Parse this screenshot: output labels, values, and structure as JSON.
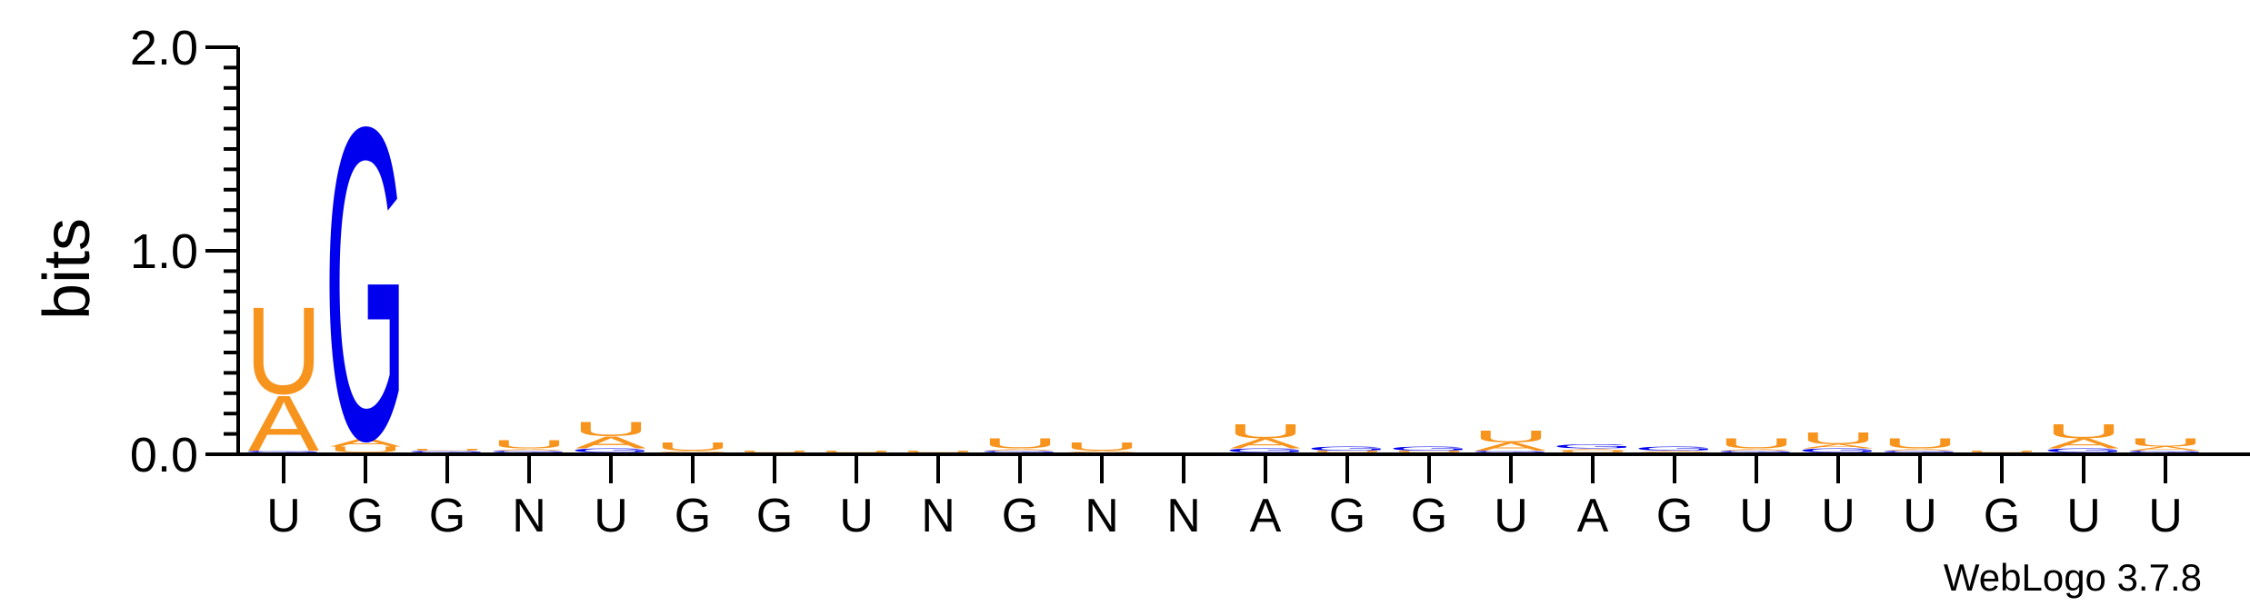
{
  "chart_data": {
    "type": "sequence-logo",
    "ylabel": "bits",
    "ylim": [
      0,
      2.0
    ],
    "yticks": [
      "0.0",
      "1.0",
      "2.0"
    ],
    "minor_ytick_step": 0.1,
    "alphabet_colors": {
      "A": "#f7941d",
      "U": "#f7941d",
      "G": "#0000ee",
      "C": "#0000ee"
    },
    "positions": [
      {
        "label": "U",
        "stack": [
          {
            "letter": "G",
            "bits": 0.01
          },
          {
            "letter": "A",
            "bits": 0.28
          },
          {
            "letter": "U",
            "bits": 0.44
          }
        ]
      },
      {
        "label": "G",
        "stack": [
          {
            "letter": "U",
            "bits": 0.03
          },
          {
            "letter": "A",
            "bits": 0.04
          },
          {
            "letter": "G",
            "bits": 1.58
          }
        ]
      },
      {
        "label": "G",
        "stack": [
          {
            "letter": "G",
            "bits": 0.01
          },
          {
            "letter": "U",
            "bits": 0.01
          }
        ]
      },
      {
        "label": "N",
        "stack": [
          {
            "letter": "G",
            "bits": 0.01
          },
          {
            "letter": "A",
            "bits": 0.01
          },
          {
            "letter": "U",
            "bits": 0.04
          }
        ]
      },
      {
        "label": "U",
        "stack": [
          {
            "letter": "G",
            "bits": 0.02
          },
          {
            "letter": "A",
            "bits": 0.06
          },
          {
            "letter": "U",
            "bits": 0.07
          }
        ]
      },
      {
        "label": "G",
        "stack": [
          {
            "letter": "A",
            "bits": 0.01
          },
          {
            "letter": "U",
            "bits": 0.04
          }
        ]
      },
      {
        "label": "G",
        "stack": [
          {
            "letter": "U",
            "bits": 0.01
          }
        ]
      },
      {
        "label": "U",
        "stack": [
          {
            "letter": "U",
            "bits": 0.01
          }
        ]
      },
      {
        "label": "N",
        "stack": [
          {
            "letter": "U",
            "bits": 0.01
          }
        ]
      },
      {
        "label": "G",
        "stack": [
          {
            "letter": "G",
            "bits": 0.01
          },
          {
            "letter": "A",
            "bits": 0.01
          },
          {
            "letter": "U",
            "bits": 0.05
          }
        ]
      },
      {
        "label": "N",
        "stack": [
          {
            "letter": "A",
            "bits": 0.01
          },
          {
            "letter": "U",
            "bits": 0.04
          }
        ]
      },
      {
        "label": "N",
        "stack": []
      },
      {
        "label": "A",
        "stack": [
          {
            "letter": "G",
            "bits": 0.02
          },
          {
            "letter": "A",
            "bits": 0.05
          },
          {
            "letter": "U",
            "bits": 0.07
          }
        ]
      },
      {
        "label": "G",
        "stack": [
          {
            "letter": "U",
            "bits": 0.01
          },
          {
            "letter": "G",
            "bits": 0.02
          }
        ]
      },
      {
        "label": "G",
        "stack": [
          {
            "letter": "U",
            "bits": 0.01
          },
          {
            "letter": "G",
            "bits": 0.02
          }
        ]
      },
      {
        "label": "U",
        "stack": [
          {
            "letter": "G",
            "bits": 0.01
          },
          {
            "letter": "A",
            "bits": 0.04
          },
          {
            "letter": "U",
            "bits": 0.06
          }
        ]
      },
      {
        "label": "A",
        "stack": [
          {
            "letter": "U",
            "bits": 0.01
          },
          {
            "letter": "A",
            "bits": 0.01
          },
          {
            "letter": "G",
            "bits": 0.02
          }
        ]
      },
      {
        "label": "G",
        "stack": [
          {
            "letter": "A",
            "bits": 0.01
          },
          {
            "letter": "G",
            "bits": 0.02
          }
        ]
      },
      {
        "label": "U",
        "stack": [
          {
            "letter": "G",
            "bits": 0.01
          },
          {
            "letter": "A",
            "bits": 0.01
          },
          {
            "letter": "U",
            "bits": 0.05
          }
        ]
      },
      {
        "label": "U",
        "stack": [
          {
            "letter": "G",
            "bits": 0.02
          },
          {
            "letter": "A",
            "bits": 0.02
          },
          {
            "letter": "U",
            "bits": 0.06
          }
        ]
      },
      {
        "label": "U",
        "stack": [
          {
            "letter": "G",
            "bits": 0.01
          },
          {
            "letter": "A",
            "bits": 0.01
          },
          {
            "letter": "U",
            "bits": 0.05
          }
        ]
      },
      {
        "label": "G",
        "stack": [
          {
            "letter": "U",
            "bits": 0.01
          }
        ]
      },
      {
        "label": "U",
        "stack": [
          {
            "letter": "G",
            "bits": 0.02
          },
          {
            "letter": "A",
            "bits": 0.05
          },
          {
            "letter": "U",
            "bits": 0.07
          }
        ]
      },
      {
        "label": "U",
        "stack": [
          {
            "letter": "G",
            "bits": 0.01
          },
          {
            "letter": "A",
            "bits": 0.02
          },
          {
            "letter": "U",
            "bits": 0.04
          }
        ]
      }
    ],
    "credit": "WebLogo 3.7.8"
  }
}
